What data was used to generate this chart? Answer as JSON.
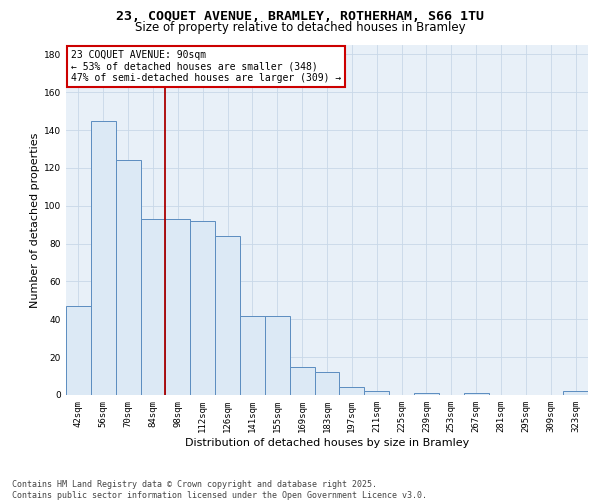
{
  "title_line1": "23, COQUET AVENUE, BRAMLEY, ROTHERHAM, S66 1TU",
  "title_line2": "Size of property relative to detached houses in Bramley",
  "xlabel": "Distribution of detached houses by size in Bramley",
  "ylabel": "Number of detached properties",
  "categories": [
    "42sqm",
    "56sqm",
    "70sqm",
    "84sqm",
    "98sqm",
    "112sqm",
    "126sqm",
    "141sqm",
    "155sqm",
    "169sqm",
    "183sqm",
    "197sqm",
    "211sqm",
    "225sqm",
    "239sqm",
    "253sqm",
    "267sqm",
    "281sqm",
    "295sqm",
    "309sqm",
    "323sqm"
  ],
  "values": [
    47,
    145,
    124,
    93,
    93,
    92,
    84,
    42,
    42,
    15,
    12,
    4,
    2,
    0,
    1,
    0,
    1,
    0,
    0,
    0,
    2
  ],
  "bar_color": "#dce9f5",
  "bar_edge_color": "#5b8dc0",
  "vline_x": 3.5,
  "vline_color": "#aa0000",
  "annotation_line1": "23 COQUET AVENUE: 90sqm",
  "annotation_line2": "← 53% of detached houses are smaller (348)",
  "annotation_line3": "47% of semi-detached houses are larger (309) →",
  "annotation_box_edgecolor": "#cc0000",
  "ylim": [
    0,
    185
  ],
  "yticks": [
    0,
    20,
    40,
    60,
    80,
    100,
    120,
    140,
    160,
    180
  ],
  "bg_color": "#e8f0f8",
  "grid_color": "#c8d8e8",
  "footer_line1": "Contains HM Land Registry data © Crown copyright and database right 2025.",
  "footer_line2": "Contains public sector information licensed under the Open Government Licence v3.0.",
  "title_fontsize": 9.5,
  "subtitle_fontsize": 8.5,
  "axis_label_fontsize": 8,
  "tick_fontsize": 6.5,
  "annotation_fontsize": 7,
  "footer_fontsize": 6
}
